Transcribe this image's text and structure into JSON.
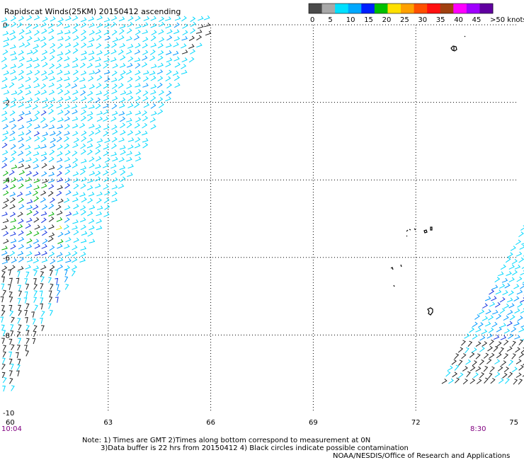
{
  "title": "Rapidscat Winds(25KM) 20150412 ascending",
  "colorbar": {
    "labels": [
      "0",
      "5",
      "10",
      "15",
      "20",
      "25",
      "30",
      "35",
      "40",
      "45",
      ">50 knots"
    ],
    "colors": [
      "#4a4a4a",
      "#a8a8a8",
      "#00e0ff",
      "#00a8ff",
      "#0020ff",
      "#00c000",
      "#ffe000",
      "#ffa000",
      "#ff5000",
      "#ff1010",
      "#a04010",
      "#ff00ff",
      "#a000ff",
      "#6000a0"
    ]
  },
  "map": {
    "lon_range": [
      60,
      75
    ],
    "lat_range": [
      -10,
      0
    ],
    "lon_ticks": [
      "60",
      "63",
      "66",
      "69",
      "72",
      "75"
    ],
    "lat_ticks": [
      "0",
      "-2",
      "-4",
      "-6",
      "-8",
      "-10"
    ],
    "grid": true
  },
  "times": {
    "left": "10:04",
    "right": "8:30"
  },
  "notes": {
    "line1": "Note: 1) Times are GMT 2)Times along bottom correspond to measurement at 0N",
    "line2": "3)Data buffer is 22 hrs from 20150412 4) Black circles indicate possible contamination",
    "line3": "NOAA/NESDIS/Office of Research and Applications"
  }
}
